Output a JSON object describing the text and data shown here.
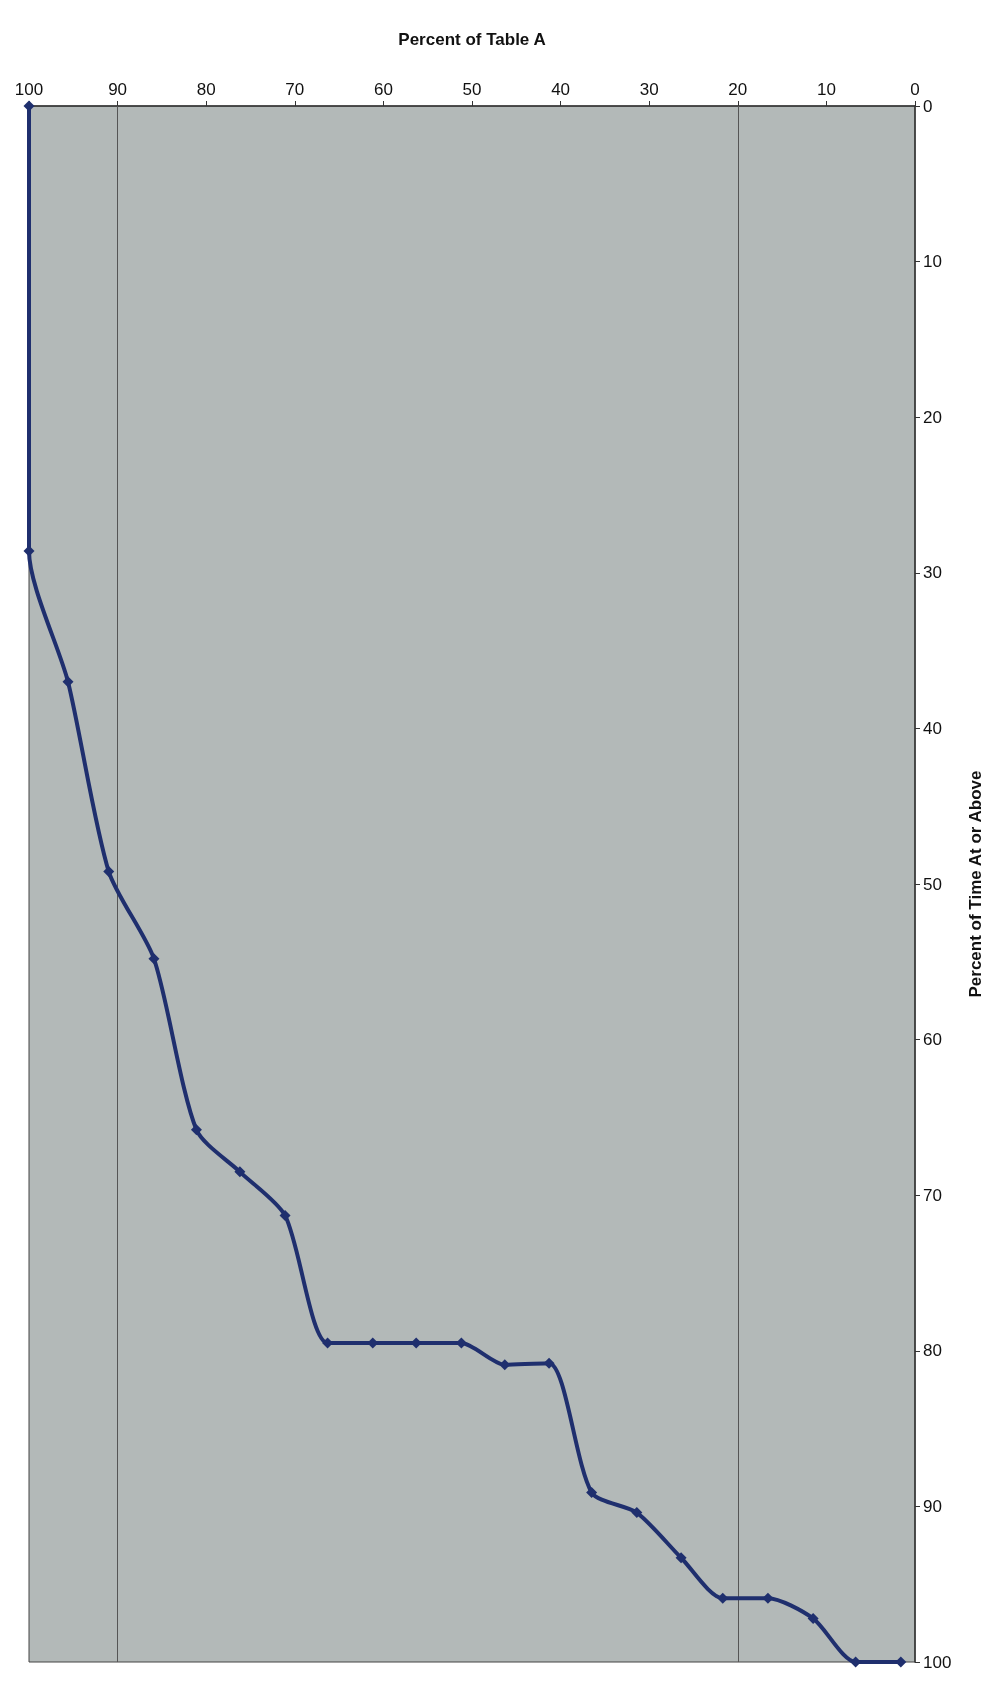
{
  "chart_data": {
    "type": "line",
    "xlabel": "Percent of Table A",
    "ylabel": "Percent of Time At or Above",
    "x": [
      100,
      100,
      95.6,
      91,
      85.9,
      81.1,
      76.2,
      71.1,
      66.3,
      61.2,
      56.3,
      51.2,
      46.3,
      41.3,
      36.5,
      31.4,
      26.4,
      21.7,
      16.6,
      11.5,
      6.7,
      1.6
    ],
    "series": [
      {
        "color": "#1f2f6e",
        "values": [
          0,
          28.6,
          37,
          49.2,
          54.8,
          65.8,
          68.5,
          71.3,
          79.5,
          79.5,
          79.5,
          79.5,
          80.9,
          80.8,
          89.1,
          90.4,
          93.3,
          95.9,
          95.9,
          97.2,
          100,
          100
        ]
      }
    ],
    "xlim": [
      100,
      0
    ],
    "xticks": [
      100,
      90,
      80,
      70,
      60,
      50,
      40,
      30,
      20,
      10,
      0
    ],
    "ylim": [
      100,
      0
    ],
    "yticks": [
      0,
      10,
      20,
      30,
      40,
      50,
      60,
      70,
      80,
      90,
      100
    ],
    "ref_lines": [
      {
        "axis": "x",
        "value": 90,
        "color": "#555555"
      },
      {
        "axis": "x",
        "value": 20,
        "color": "#555555"
      }
    ],
    "marker": "diamond",
    "line_style": "solid",
    "grid": false
  }
}
